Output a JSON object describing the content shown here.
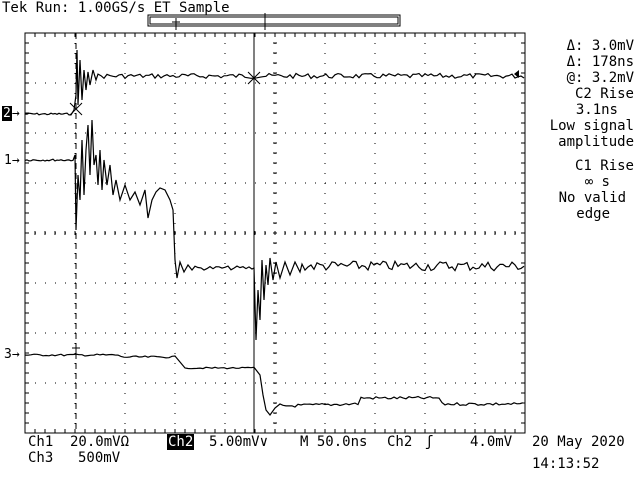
{
  "header": {
    "status": "Tek Run: 1.00GS/s ET Sample"
  },
  "markers": {
    "ch2": "2",
    "ch1": "1",
    "ch3": "3"
  },
  "readouts": {
    "delta_v": "Δ: 3.0mV",
    "delta_t": "Δ: 178ns",
    "at_v": "@: 3.2mV",
    "c2_title": "C2 Rise",
    "c2_value": "3.1ns",
    "c2_note1": "Low signal",
    "c2_note2": "amplitude",
    "c1_title": "C1 Rise",
    "c1_value": "∞ s",
    "c1_note1": "No valid",
    "c1_note2": "edge"
  },
  "footer": {
    "ch1_label": "Ch1",
    "ch1_scale": "20.0mVΩ",
    "ch2_label": "Ch2",
    "ch2_scale": "5.00mV∨",
    "timebase": "M 50.0ns",
    "trigger_source": "Ch2",
    "trigger_slope": "ʃ",
    "trigger_level": "4.0mV",
    "ch3_label": "Ch3",
    "ch3_scale": "500mV",
    "date": "20 May 2020",
    "time": "14:13:52"
  }
}
